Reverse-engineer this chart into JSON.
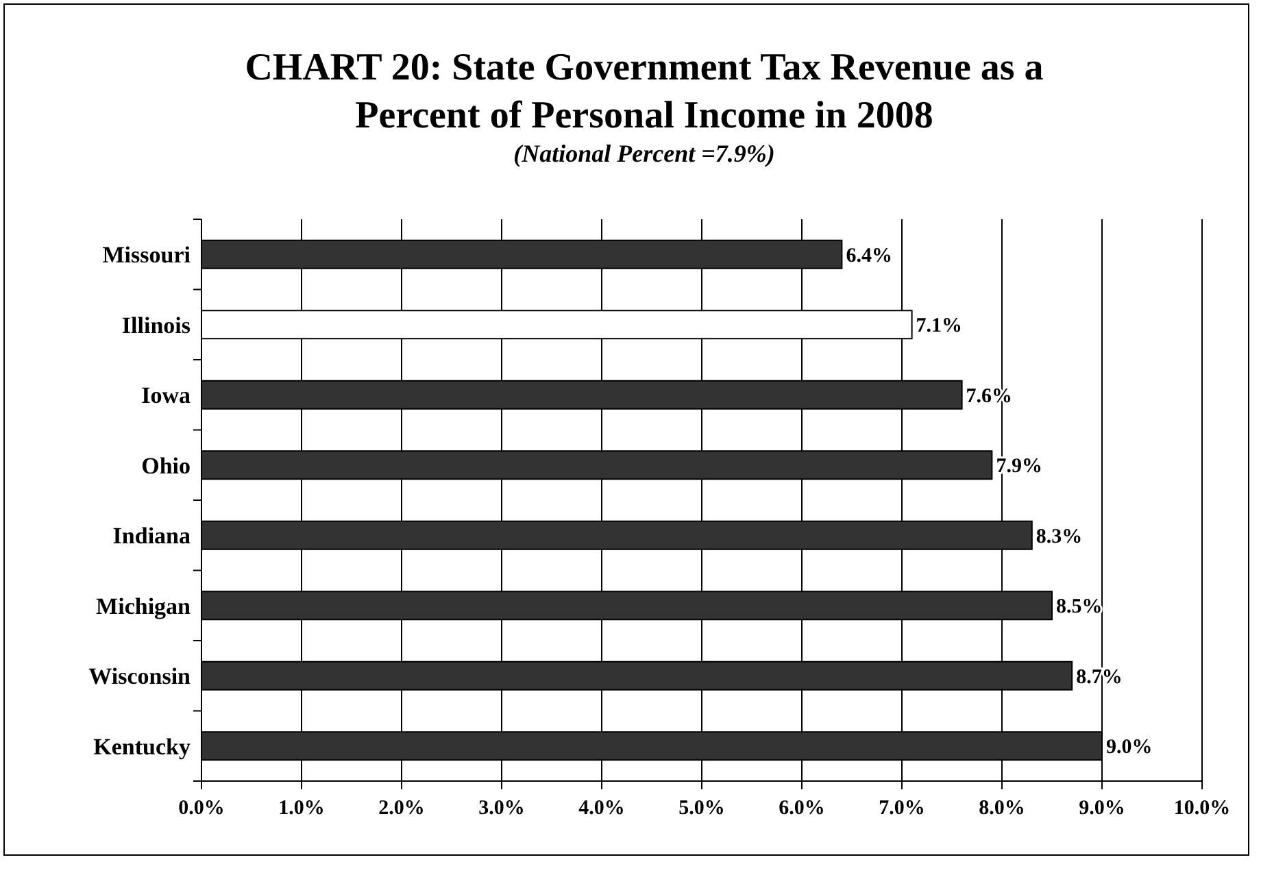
{
  "chart_data": {
    "type": "bar",
    "orientation": "horizontal",
    "title": "CHART 20: State Government Tax Revenue as a Percent of Personal Income in 2008",
    "subtitle": "(National Percent  =7.9%)",
    "categories": [
      "Missouri",
      "Illinois",
      "Iowa",
      "Ohio",
      "Indiana",
      "Michigan",
      "Wisconsin",
      "Kentucky"
    ],
    "values": [
      6.4,
      7.1,
      7.6,
      7.9,
      8.3,
      8.5,
      8.7,
      9.0
    ],
    "colors": [
      "#333333",
      "#ffffff",
      "#333333",
      "#333333",
      "#333333",
      "#333333",
      "#333333",
      "#333333"
    ],
    "value_labels": [
      "6.4%",
      "7.1%",
      "7.6%",
      "7.9%",
      "8.3%",
      "8.5%",
      "8.7%",
      "9.0%"
    ],
    "xlim": [
      0,
      10
    ],
    "xticks": [
      {
        "value": 0,
        "label": "0.0%"
      },
      {
        "value": 1,
        "label": "1.0%"
      },
      {
        "value": 2,
        "label": "2.0%"
      },
      {
        "value": 3,
        "label": "3.0%"
      },
      {
        "value": 4,
        "label": "4.0%"
      },
      {
        "value": 5,
        "label": "5.0%"
      },
      {
        "value": 6,
        "label": "6.0%"
      },
      {
        "value": 7,
        "label": "7.0%"
      },
      {
        "value": 8,
        "label": "8.0%"
      },
      {
        "value": 9,
        "label": "9.0%"
      },
      {
        "value": 10,
        "label": "10.0%"
      }
    ],
    "grid": "x"
  }
}
